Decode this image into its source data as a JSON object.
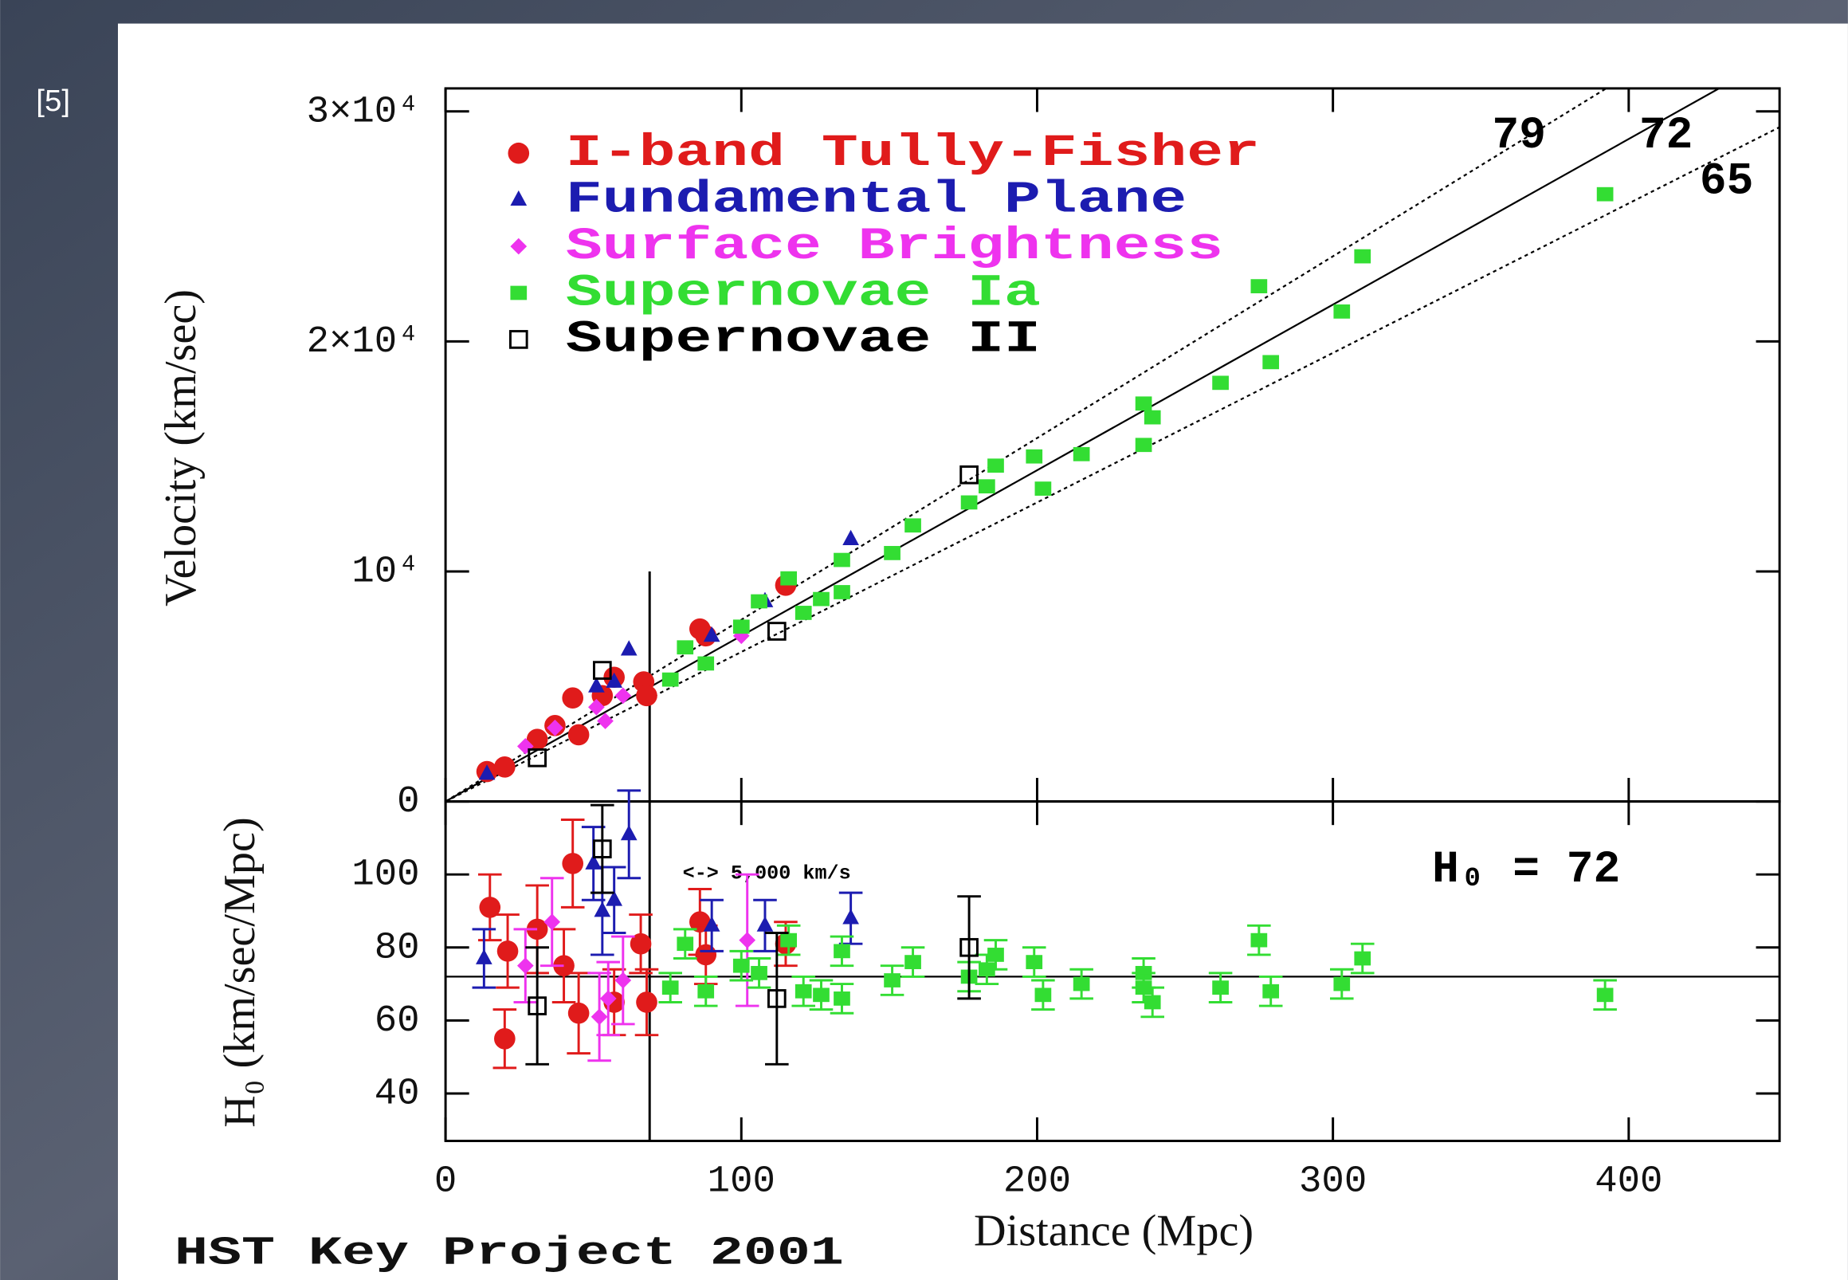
{
  "slide_label": "[5]",
  "footer": "HST Key Project 2001",
  "chart_data": [
    {
      "type": "scatter",
      "y_label": "Velocity (km/sec)",
      "xlim": [
        0,
        451
      ],
      "xticks": [
        0,
        100,
        200,
        300,
        400
      ],
      "ylim": [
        0,
        31000
      ],
      "yticks": [
        0,
        {
          "value": 10000,
          "label": "10⁴"
        },
        {
          "value": 20000,
          "label": "2×10⁴"
        },
        {
          "value": 30000,
          "label": "3×10⁴"
        }
      ],
      "lines": [
        79,
        72,
        65
      ],
      "vline": {
        "x": 69,
        "ymax": 10000
      },
      "series": [
        {
          "name": "I-band Tully-Fisher",
          "color": "#e01b1b",
          "marker": "circle",
          "x": [
            14,
            20,
            31,
            37,
            43,
            45,
            53,
            57,
            67,
            68,
            86,
            88,
            115
          ],
          "values": [
            1300,
            1500,
            2700,
            3300,
            4500,
            2900,
            4600,
            5400,
            5200,
            4600,
            7500,
            7200,
            9400
          ]
        },
        {
          "name": "Fundamental Plane",
          "color": "#1c1cb0",
          "marker": "triangle",
          "x": [
            14,
            51,
            57,
            62,
            90,
            108,
            137
          ],
          "values": [
            1200,
            5000,
            5200,
            6600,
            7200,
            8700,
            11400
          ]
        },
        {
          "name": "Surface Brightness",
          "color": "#ee33ee",
          "marker": "diamond",
          "x": [
            27,
            37,
            51,
            54,
            60,
            100
          ],
          "values": [
            2400,
            3200,
            4100,
            3500,
            4600,
            7200
          ]
        },
        {
          "name": "Supernovae Ia",
          "color": "#33dd33",
          "marker": "square",
          "x": [
            392,
            310,
            275,
            303,
            279,
            262,
            236,
            239,
            236,
            186,
            199,
            202,
            215,
            183,
            177,
            158,
            151,
            134,
            134,
            127,
            121,
            116,
            106,
            100,
            88,
            81,
            76
          ],
          "values": [
            26400,
            23700,
            22400,
            21300,
            19100,
            18200,
            17300,
            16700,
            15500,
            14600,
            15000,
            13600,
            15100,
            13700,
            13000,
            12000,
            10800,
            10500,
            9100,
            8800,
            8200,
            9700,
            8700,
            7600,
            6000,
            6700,
            5300
          ]
        },
        {
          "name": "Supernovae II",
          "color": "#000000",
          "marker": "open-square",
          "x": [
            31,
            53,
            112,
            177
          ],
          "values": [
            1900,
            5700,
            7400,
            14200
          ]
        }
      ]
    },
    {
      "type": "errorbar",
      "y_label": "H₀ (km/sec/Mpc)",
      "x_label": "Distance (Mpc)",
      "xlim": [
        0,
        451
      ],
      "xticks": [
        0,
        100,
        200,
        300,
        400
      ],
      "ylim": [
        27,
        120
      ],
      "yticks": [
        40,
        60,
        80,
        100
      ],
      "reference_line": {
        "value": 72,
        "label": "H₀ = 72"
      },
      "annotation": {
        "x": 69,
        "label": "<-> 5,000 km/s"
      },
      "series": [
        {
          "color": "#e01b1b",
          "marker": "circle",
          "x": [
            15,
            21,
            20,
            31,
            40,
            43,
            45,
            57,
            68,
            66,
            86,
            88,
            115
          ],
          "values": [
            91,
            79,
            55,
            85,
            75,
            103,
            62,
            65,
            65,
            81,
            87,
            78,
            81
          ],
          "errors": [
            9,
            10,
            8,
            12,
            10,
            12,
            11,
            9,
            9,
            8,
            9,
            8,
            6
          ]
        },
        {
          "color": "#1c1cb0",
          "marker": "triangle",
          "x": [
            13,
            50,
            53,
            57,
            62,
            90,
            108,
            137
          ],
          "values": [
            77,
            103,
            90,
            93,
            111,
            86,
            86,
            88
          ],
          "errors": [
            8,
            10,
            12,
            9,
            12,
            7,
            7,
            7
          ]
        },
        {
          "color": "#ee33ee",
          "marker": "diamond",
          "x": [
            27,
            36,
            52,
            55,
            60,
            102
          ],
          "values": [
            75,
            87,
            61,
            66,
            71,
            82
          ],
          "errors": [
            10,
            12,
            12,
            10,
            12,
            18
          ]
        },
        {
          "color": "#33dd33",
          "marker": "square",
          "x": [
            392,
            310,
            275,
            303,
            279,
            262,
            236,
            239,
            236,
            186,
            199,
            202,
            215,
            183,
            177,
            158,
            151,
            134,
            134,
            127,
            121,
            116,
            106,
            100,
            88,
            81,
            76
          ],
          "values": [
            67,
            77,
            82,
            70,
            68,
            69,
            73,
            65,
            69,
            78,
            76,
            67,
            70,
            74,
            72,
            76,
            71,
            79,
            66,
            67,
            68,
            82,
            73,
            75,
            68,
            81,
            69
          ],
          "errors": [
            4,
            4,
            4,
            4,
            4,
            4,
            4,
            4,
            4,
            4,
            4,
            4,
            4,
            4,
            4,
            4,
            4,
            4,
            4,
            4,
            4,
            4,
            4,
            4,
            4,
            4,
            4
          ]
        },
        {
          "color": "#000000",
          "marker": "open-square",
          "x": [
            31,
            53,
            112,
            177
          ],
          "values": [
            64,
            107,
            66,
            80
          ],
          "errors": [
            16,
            12,
            18,
            14
          ]
        }
      ]
    }
  ]
}
